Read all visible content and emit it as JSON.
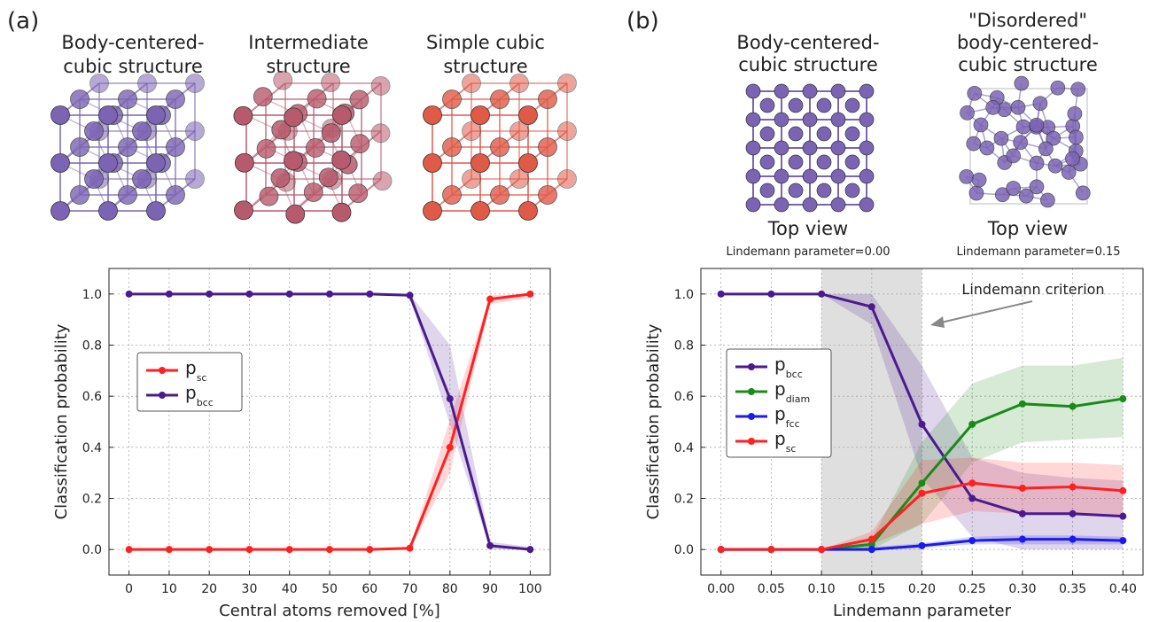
{
  "panel_a": {
    "label": "(a)",
    "structures": [
      {
        "title_line1": "Body-centered-",
        "title_line2": "cubic structure",
        "color": "#7b64b4"
      },
      {
        "title_line1": "Intermediate",
        "title_line2": "structure",
        "color": "#b85a6e"
      },
      {
        "title_line1": "Simple cubic",
        "title_line2": "structure",
        "color": "#e05a48"
      }
    ]
  },
  "panel_b": {
    "label": "(b)",
    "structures": [
      {
        "title_line1": "",
        "title_line2": "Body-centered-",
        "title_line3": "cubic structure",
        "view": "Top view",
        "param_label": "Lindemann parameter=0.00",
        "color": "#7b64b4"
      },
      {
        "title_line1": "\"Disordered\"",
        "title_line2": "body-centered-",
        "title_line3": "cubic structure",
        "view": "Top view",
        "param_label": "Lindemann parameter=0.15",
        "color": "#7b64b4"
      }
    ],
    "annotation": "Lindemann criterion"
  },
  "chart_data": [
    {
      "type": "line",
      "xlabel": "Central atoms removed [%]",
      "ylabel": "Classification probability",
      "x": [
        0,
        10,
        20,
        30,
        40,
        50,
        60,
        70,
        80,
        90,
        100
      ],
      "xticks": [
        "0",
        "10",
        "20",
        "30",
        "40",
        "50",
        "60",
        "70",
        "80",
        "90",
        "100"
      ],
      "xlim": [
        -5,
        105
      ],
      "ylim": [
        -0.1,
        1.1
      ],
      "yticks": [
        "0.0",
        "0.2",
        "0.4",
        "0.6",
        "0.8",
        "1.0"
      ],
      "grid": true,
      "legend": "center-left",
      "series": [
        {
          "name": "p",
          "sub": "sc",
          "color": "#ff2020",
          "values": [
            0,
            0,
            0,
            0,
            0,
            0,
            0,
            0.005,
            0.4,
            0.98,
            1.0
          ],
          "lower": [
            0,
            0,
            0,
            0,
            0,
            0,
            0,
            0,
            0.3,
            0.96,
            0.985
          ],
          "upper": [
            0,
            0,
            0,
            0,
            0,
            0,
            0,
            0.01,
            0.51,
            0.995,
            1.0
          ]
        },
        {
          "name": "p",
          "sub": "bcc",
          "color": "#4b1a8e",
          "values": [
            1.0,
            1.0,
            1.0,
            1.0,
            1.0,
            1.0,
            1.0,
            0.995,
            0.59,
            0.015,
            0.0
          ],
          "lower": [
            1.0,
            1.0,
            1.0,
            1.0,
            1.0,
            1.0,
            1.0,
            0.99,
            0.49,
            0.0,
            0.0
          ],
          "upper": [
            1.0,
            1.0,
            1.0,
            1.0,
            1.0,
            1.0,
            1.0,
            1.0,
            0.8,
            0.03,
            0.01
          ]
        }
      ]
    },
    {
      "type": "line",
      "xlabel": "Lindemann parameter",
      "ylabel": "Classification probability",
      "x": [
        0.0,
        0.05,
        0.1,
        0.15,
        0.2,
        0.25,
        0.3,
        0.35,
        0.4
      ],
      "xticks": [
        "0.00",
        "0.05",
        "0.10",
        "0.15",
        "0.20",
        "0.25",
        "0.30",
        "0.35",
        "0.40"
      ],
      "xlim": [
        -0.02,
        0.42
      ],
      "ylim": [
        -0.1,
        1.1
      ],
      "yticks": [
        "0.0",
        "0.2",
        "0.4",
        "0.6",
        "0.8",
        "1.0"
      ],
      "grid": true,
      "legend": "center-left",
      "shaded_region": [
        0.1,
        0.2
      ],
      "series": [
        {
          "name": "p",
          "sub": "bcc",
          "color": "#4b1a8e",
          "values": [
            1.0,
            1.0,
            1.0,
            0.95,
            0.49,
            0.2,
            0.14,
            0.14,
            0.13
          ],
          "lower": [
            1.0,
            1.0,
            1.0,
            0.88,
            0.28,
            0.05,
            0.0,
            0.0,
            0.0
          ],
          "upper": [
            1.0,
            1.0,
            1.0,
            1.0,
            0.72,
            0.36,
            0.3,
            0.28,
            0.27
          ]
        },
        {
          "name": "p",
          "sub": "diam",
          "color": "#1a8a1a",
          "values": [
            0,
            0,
            0,
            0.02,
            0.26,
            0.49,
            0.57,
            0.56,
            0.59
          ],
          "lower": [
            0,
            0,
            0,
            0.0,
            0.1,
            0.34,
            0.42,
            0.43,
            0.44
          ],
          "upper": [
            0,
            0,
            0,
            0.04,
            0.42,
            0.65,
            0.72,
            0.72,
            0.75
          ]
        },
        {
          "name": "p",
          "sub": "fcc",
          "color": "#1a1aee",
          "values": [
            0,
            0,
            0,
            0.0,
            0.015,
            0.035,
            0.04,
            0.04,
            0.035
          ],
          "lower": [
            0,
            0,
            0,
            0.0,
            0.005,
            0.02,
            0.02,
            0.02,
            0.02
          ],
          "upper": [
            0,
            0,
            0,
            0.01,
            0.025,
            0.05,
            0.055,
            0.055,
            0.05
          ]
        },
        {
          "name": "p",
          "sub": "sc",
          "color": "#ff2020",
          "values": [
            0,
            0,
            0,
            0.04,
            0.22,
            0.26,
            0.24,
            0.245,
            0.23
          ],
          "lower": [
            0,
            0,
            0,
            0.02,
            0.1,
            0.15,
            0.14,
            0.14,
            0.13
          ],
          "upper": [
            0,
            0,
            0,
            0.07,
            0.35,
            0.36,
            0.34,
            0.34,
            0.33
          ]
        }
      ]
    }
  ]
}
